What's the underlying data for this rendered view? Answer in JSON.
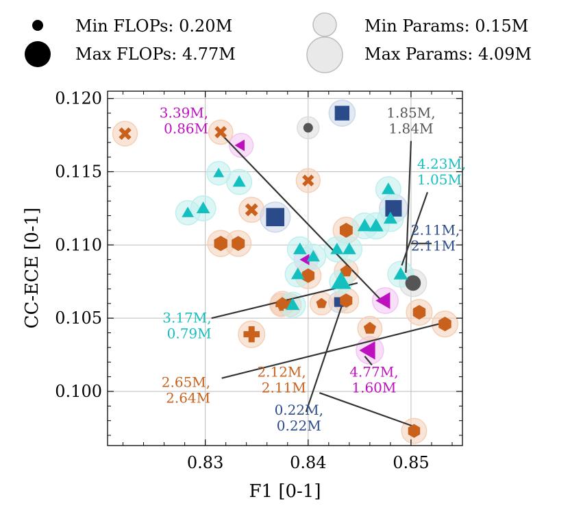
{
  "chart_data": {
    "type": "scatter",
    "xlabel": "F1 [0-1]",
    "ylabel": "CC-ECE [0-1]",
    "xlim": [
      0.8205,
      0.855
    ],
    "ylim": [
      0.0963,
      0.1205
    ],
    "xticks": [
      0.83,
      0.84,
      0.85
    ],
    "xtick_labels": [
      "0.83",
      "0.84",
      "0.85"
    ],
    "yticks": [
      0.1,
      0.105,
      0.11,
      0.115,
      0.12
    ],
    "ytick_labels": [
      "0.100",
      "0.105",
      "0.110",
      "0.115",
      "0.120"
    ],
    "grid": true,
    "legend": {
      "placement": "top",
      "entries": [
        {
          "label": "Min FLOPs: 0.20M",
          "kind": "flops",
          "value": 0.2
        },
        {
          "label": "Max FLOPs: 4.77M",
          "kind": "flops",
          "value": 4.77
        },
        {
          "label": "Min Params: 0.15M",
          "kind": "params",
          "value": 0.15
        },
        {
          "label": "Max Params: 4.09M",
          "kind": "params",
          "value": 4.09
        }
      ]
    },
    "colors": {
      "orange": "#c9601b",
      "cyan": "#14bfbf",
      "magenta": "#bf10bf",
      "navy": "#2b4a8a",
      "gray": "#555555",
      "halo_orange": "#f4cfb6",
      "halo_cyan": "#bfeeee",
      "halo_magenta": "#f3c4f3",
      "halo_navy": "#ccd7ea",
      "halo_gray": "#dddddd",
      "line": "#333333",
      "grid": "#bbbbbb"
    },
    "points": [
      {
        "x": 0.8222,
        "y": 0.1176,
        "shape": "x",
        "color": "orange",
        "flops": 1.0,
        "params": 1.2
      },
      {
        "x": 0.8315,
        "y": 0.1177,
        "shape": "x",
        "color": "orange",
        "flops": 0.9,
        "params": 1.1
      },
      {
        "x": 0.8345,
        "y": 0.1124,
        "shape": "x",
        "color": "orange",
        "flops": 1.1,
        "params": 1.3
      },
      {
        "x": 0.84,
        "y": 0.1144,
        "shape": "x",
        "color": "orange",
        "flops": 0.8,
        "params": 1.0
      },
      {
        "x": 0.8335,
        "y": 0.1168,
        "shape": "tri-left",
        "color": "magenta",
        "flops": 0.9,
        "params": 1.0
      },
      {
        "x": 0.8398,
        "y": 0.109,
        "shape": "tri-left",
        "color": "magenta",
        "flops": 0.8,
        "params": 1.0
      },
      {
        "x": 0.8475,
        "y": 0.1062,
        "shape": "tri-left",
        "color": "magenta",
        "flops": 2.4,
        "params": 1.5
      },
      {
        "x": 0.846,
        "y": 0.1028,
        "shape": "tri-left",
        "color": "magenta",
        "flops": 2.9,
        "params": 1.9
      },
      {
        "x": 0.8433,
        "y": 0.119,
        "shape": "square",
        "color": "navy",
        "flops": 1.6,
        "params": 1.6
      },
      {
        "x": 0.8368,
        "y": 0.1119,
        "shape": "square",
        "color": "navy",
        "flops": 2.6,
        "params": 2.6
      },
      {
        "x": 0.8483,
        "y": 0.1125,
        "shape": "square",
        "color": "navy",
        "flops": 2.11,
        "params": 2.11
      },
      {
        "x": 0.843,
        "y": 0.1061,
        "shape": "square",
        "color": "navy",
        "flops": 0.22,
        "params": 0.22
      },
      {
        "x": 0.84,
        "y": 0.118,
        "shape": "circle",
        "color": "gray",
        "flops": 0.2,
        "params": 0.5
      },
      {
        "x": 0.8502,
        "y": 0.1074,
        "shape": "circle",
        "color": "gray",
        "flops": 1.85,
        "params": 1.84
      },
      {
        "x": 0.8315,
        "y": 0.1101,
        "shape": "hexagon",
        "color": "orange",
        "flops": 1.6,
        "params": 1.6
      },
      {
        "x": 0.8332,
        "y": 0.1101,
        "shape": "hexagon",
        "color": "orange",
        "flops": 1.5,
        "params": 1.5
      },
      {
        "x": 0.8437,
        "y": 0.111,
        "shape": "hexagon",
        "color": "orange",
        "flops": 1.5,
        "params": 1.6
      },
      {
        "x": 0.84,
        "y": 0.1079,
        "shape": "hexagon",
        "color": "orange",
        "flops": 1.4,
        "params": 1.5
      },
      {
        "x": 0.8437,
        "y": 0.1062,
        "shape": "hexagon",
        "color": "orange",
        "flops": 1.3,
        "params": 1.3
      },
      {
        "x": 0.8508,
        "y": 0.1054,
        "shape": "hexagon",
        "color": "orange",
        "flops": 1.4,
        "params": 1.5
      },
      {
        "x": 0.8533,
        "y": 0.1046,
        "shape": "hexagon",
        "color": "orange",
        "flops": 1.4,
        "params": 1.5
      },
      {
        "x": 0.8503,
        "y": 0.0973,
        "shape": "hexagon",
        "color": "orange",
        "flops": 1.2,
        "params": 1.3
      },
      {
        "x": 0.8382,
        "y": 0.1059,
        "shape": "pentagon",
        "color": "orange",
        "flops": 0.6,
        "params": 0.8
      },
      {
        "x": 0.8413,
        "y": 0.106,
        "shape": "pentagon",
        "color": "orange",
        "flops": 0.5,
        "params": 0.7
      },
      {
        "x": 0.8437,
        "y": 0.1082,
        "shape": "pentagon",
        "color": "orange",
        "flops": 0.9,
        "params": 1.0
      },
      {
        "x": 0.846,
        "y": 0.1043,
        "shape": "pentagon",
        "color": "orange",
        "flops": 1.0,
        "params": 1.1
      },
      {
        "x": 0.8375,
        "y": 0.106,
        "shape": "pentagon",
        "color": "orange",
        "flops": 1.0,
        "params": 1.1
      },
      {
        "x": 0.8374,
        "y": 0.1059,
        "shape": "plus",
        "color": "orange",
        "flops": 0.6,
        "params": 0.8
      },
      {
        "x": 0.8345,
        "y": 0.1039,
        "shape": "plus",
        "color": "orange",
        "flops": 1.8,
        "params": 1.7
      },
      {
        "x": 0.8283,
        "y": 0.1122,
        "shape": "triangle",
        "color": "cyan",
        "flops": 0.9,
        "params": 1.1
      },
      {
        "x": 0.8298,
        "y": 0.1125,
        "shape": "triangle",
        "color": "cyan",
        "flops": 1.3,
        "params": 1.3
      },
      {
        "x": 0.8313,
        "y": 0.1149,
        "shape": "triangle",
        "color": "cyan",
        "flops": 0.6,
        "params": 0.9
      },
      {
        "x": 0.8333,
        "y": 0.1143,
        "shape": "triangle",
        "color": "cyan",
        "flops": 1.2,
        "params": 1.3
      },
      {
        "x": 0.8392,
        "y": 0.1097,
        "shape": "triangle",
        "color": "cyan",
        "flops": 1.3,
        "params": 1.3
      },
      {
        "x": 0.8405,
        "y": 0.1092,
        "shape": "triangle",
        "color": "cyan",
        "flops": 1.2,
        "params": 1.3
      },
      {
        "x": 0.839,
        "y": 0.108,
        "shape": "triangle",
        "color": "cyan",
        "flops": 1.3,
        "params": 1.4
      },
      {
        "x": 0.8385,
        "y": 0.1059,
        "shape": "triangle",
        "color": "cyan",
        "flops": 1.4,
        "params": 1.4
      },
      {
        "x": 0.8428,
        "y": 0.1097,
        "shape": "triangle",
        "color": "cyan",
        "flops": 1.2,
        "params": 1.3
      },
      {
        "x": 0.844,
        "y": 0.1097,
        "shape": "triangle",
        "color": "cyan",
        "flops": 1.3,
        "params": 1.4
      },
      {
        "x": 0.8432,
        "y": 0.1075,
        "shape": "triangle",
        "color": "cyan",
        "flops": 3.17,
        "params": 0.79
      },
      {
        "x": 0.8455,
        "y": 0.1113,
        "shape": "triangle",
        "color": "cyan",
        "flops": 1.6,
        "params": 1.5
      },
      {
        "x": 0.8466,
        "y": 0.1113,
        "shape": "triangle",
        "color": "cyan",
        "flops": 1.7,
        "params": 1.6
      },
      {
        "x": 0.8478,
        "y": 0.1138,
        "shape": "triangle",
        "color": "cyan",
        "flops": 1.3,
        "params": 1.3
      },
      {
        "x": 0.848,
        "y": 0.1118,
        "shape": "triangle",
        "color": "cyan",
        "flops": 1.4,
        "params": 1.5
      },
      {
        "x": 0.849,
        "y": 0.108,
        "shape": "triangle",
        "color": "cyan",
        "flops": 1.5,
        "params": 1.5
      }
    ],
    "annotations": [
      {
        "lines": [
          "3.39M,",
          "0.86M"
        ],
        "color": "magenta",
        "label_x": 0.8303,
        "label_y": 0.1187,
        "anchor": "end",
        "from_x": 0.8315,
        "from_y": 0.1176,
        "to_x": 0.847,
        "to_y": 0.1063
      },
      {
        "lines": [
          "1.85M,",
          "1.84M"
        ],
        "color": "gray",
        "label_x": 0.85,
        "label_y": 0.1187,
        "anchor": "middle",
        "from_x": 0.85,
        "from_y": 0.1171,
        "to_x": 0.8495,
        "to_y": 0.1081
      },
      {
        "lines": [
          "4.23M,",
          "1.05M"
        ],
        "color": "cyan",
        "label_x": 0.8506,
        "label_y": 0.1152,
        "anchor": "start",
        "from_x": 0.8516,
        "from_y": 0.1136,
        "to_x": 0.8491,
        "to_y": 0.1086
      },
      {
        "lines": [
          "2.11M,",
          "2.11M"
        ],
        "color": "navy",
        "label_x": 0.85,
        "label_y": 0.1107,
        "anchor": "start",
        "from_x": 0.852,
        "from_y": 0.1101,
        "to_x": 0.85,
        "to_y": 0.1101
      },
      {
        "lines": [
          "3.17M,",
          "0.79M"
        ],
        "color": "cyan",
        "label_x": 0.8306,
        "label_y": 0.1047,
        "anchor": "end",
        "from_x": 0.8306,
        "from_y": 0.105,
        "to_x": 0.8448,
        "to_y": 0.1074
      },
      {
        "lines": [
          "2.65M,",
          "2.64M"
        ],
        "color": "orange",
        "label_x": 0.8305,
        "label_y": 0.1003,
        "anchor": "end",
        "from_x": 0.8316,
        "from_y": 0.1009,
        "to_x": 0.8527,
        "to_y": 0.1046
      },
      {
        "lines": [
          "2.12M,",
          "2.11M"
        ],
        "color": "orange",
        "label_x": 0.8398,
        "label_y": 0.101,
        "anchor": "end",
        "from_x": 0.8411,
        "from_y": 0.0999,
        "to_x": 0.8503,
        "to_y": 0.0976
      },
      {
        "lines": [
          "4.77M,",
          "1.60M"
        ],
        "color": "magenta",
        "label_x": 0.8464,
        "label_y": 0.101,
        "anchor": "middle",
        "from_x": 0.8462,
        "from_y": 0.1018,
        "to_x": 0.8455,
        "to_y": 0.1024
      },
      {
        "lines": [
          "0.22M,",
          "0.22M"
        ],
        "color": "navy",
        "label_x": 0.8391,
        "label_y": 0.0984,
        "anchor": "middle",
        "from_x": 0.8398,
        "from_y": 0.0986,
        "to_x": 0.8433,
        "to_y": 0.1059
      }
    ]
  }
}
